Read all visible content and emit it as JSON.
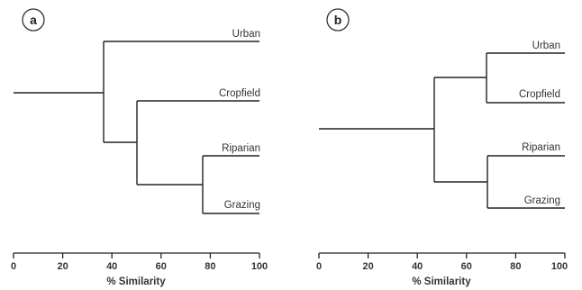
{
  "panels": [
    {
      "letter": "a",
      "axis_title": "% Similarity",
      "ticks": [
        "0",
        "20",
        "40",
        "60",
        "80",
        "100"
      ],
      "leaves": [
        "Urban",
        "Cropfield",
        "Riparian",
        "Grazing"
      ],
      "joins": [
        {
          "items": [
            "Riparian",
            "Grazing"
          ],
          "similarity": 77
        },
        {
          "items": [
            "Cropfield",
            "Riparian + Grazing"
          ],
          "similarity": 50
        },
        {
          "items": [
            "Urban",
            "Cropfield + Riparian + Grazing"
          ],
          "similarity": 37
        }
      ]
    },
    {
      "letter": "b",
      "axis_title": "% Similarity",
      "ticks": [
        "0",
        "20",
        "40",
        "60",
        "80",
        "100"
      ],
      "leaves": [
        "Urban",
        "Cropfield",
        "Riparian",
        "Grazing"
      ],
      "joins": [
        {
          "items": [
            "Urban",
            "Cropfield"
          ],
          "similarity": 68
        },
        {
          "items": [
            "Riparian",
            "Grazing"
          ],
          "similarity": 68
        },
        {
          "items": [
            "Urban + Cropfield",
            "Riparian + Grazing"
          ],
          "similarity": 47
        }
      ]
    }
  ]
}
